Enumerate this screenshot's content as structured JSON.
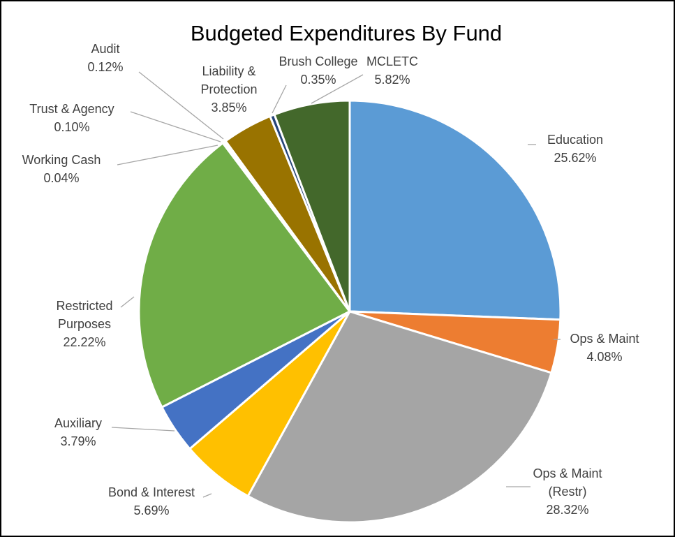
{
  "chart_data": {
    "type": "pie",
    "title": "Budgeted Expenditures By Fund",
    "slices": [
      {
        "label_lines": [
          "Education"
        ],
        "value_label": "25.62%",
        "value": 25.62,
        "color": "#5b9bd5"
      },
      {
        "label_lines": [
          "Ops & Maint"
        ],
        "value_label": "4.08%",
        "value": 4.08,
        "color": "#ed7d31"
      },
      {
        "label_lines": [
          "Ops & Maint",
          "(Restr)"
        ],
        "value_label": "28.32%",
        "value": 28.32,
        "color": "#a5a5a5"
      },
      {
        "label_lines": [
          "Bond & Interest"
        ],
        "value_label": "5.69%",
        "value": 5.69,
        "color": "#ffc000"
      },
      {
        "label_lines": [
          "Auxiliary"
        ],
        "value_label": "3.79%",
        "value": 3.79,
        "color": "#4472c4"
      },
      {
        "label_lines": [
          "Restricted",
          "Purposes"
        ],
        "value_label": "22.22%",
        "value": 22.22,
        "color": "#70ad47"
      },
      {
        "label_lines": [
          "Working Cash"
        ],
        "value_label": "0.04%",
        "value": 0.04,
        "color": "#255e91"
      },
      {
        "label_lines": [
          "Trust & Agency"
        ],
        "value_label": "0.10%",
        "value": 0.1,
        "color": "#9e480e"
      },
      {
        "label_lines": [
          "Audit"
        ],
        "value_label": "0.12%",
        "value": 0.12,
        "color": "#636363"
      },
      {
        "label_lines": [
          "Liability &",
          "Protection"
        ],
        "value_label": "3.85%",
        "value": 3.85,
        "color": "#997300"
      },
      {
        "label_lines": [
          "Brush College"
        ],
        "value_label": "0.35%",
        "value": 0.35,
        "color": "#264478"
      },
      {
        "label_lines": [
          "MCLETC"
        ],
        "value_label": "5.82%",
        "value": 5.82,
        "color": "#43682b"
      }
    ]
  }
}
